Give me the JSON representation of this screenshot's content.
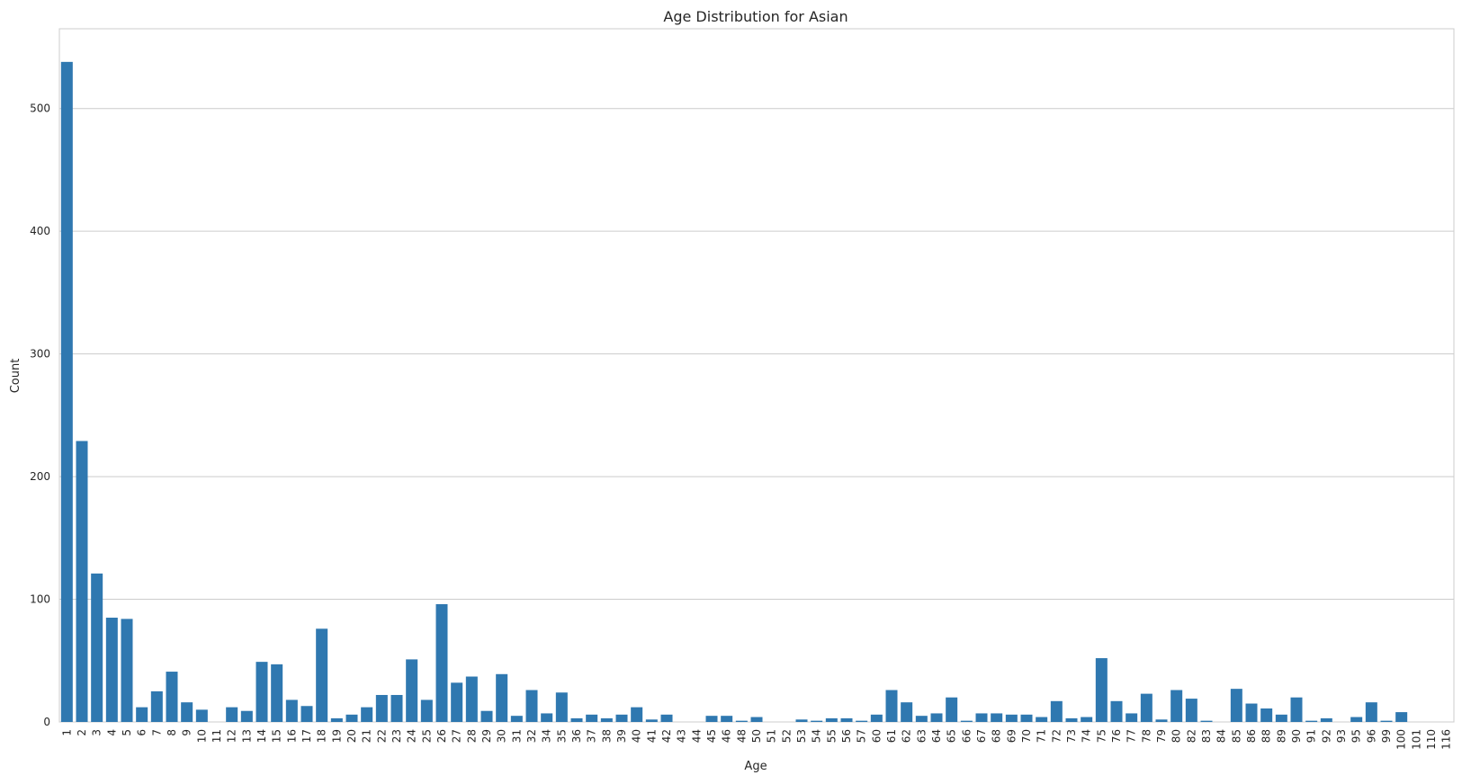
{
  "chart_data": {
    "type": "bar",
    "title": "Age Distribution for Asian",
    "xlabel": "Age",
    "ylabel": "Count",
    "ylim": [
      0,
      565
    ],
    "yticks": [
      0,
      100,
      200,
      300,
      400,
      500
    ],
    "grid": "horizontal",
    "bar_color": "#2f78b0",
    "categories": [
      "1",
      "2",
      "3",
      "4",
      "5",
      "6",
      "7",
      "8",
      "9",
      "10",
      "11",
      "12",
      "13",
      "14",
      "15",
      "16",
      "17",
      "18",
      "19",
      "20",
      "21",
      "22",
      "23",
      "24",
      "25",
      "26",
      "27",
      "28",
      "29",
      "30",
      "31",
      "32",
      "34",
      "35",
      "36",
      "37",
      "38",
      "39",
      "40",
      "41",
      "42",
      "43",
      "44",
      "45",
      "46",
      "48",
      "50",
      "51",
      "52",
      "53",
      "54",
      "55",
      "56",
      "57",
      "60",
      "61",
      "62",
      "63",
      "64",
      "65",
      "66",
      "67",
      "68",
      "69",
      "70",
      "71",
      "72",
      "73",
      "74",
      "75",
      "76",
      "77",
      "78",
      "79",
      "80",
      "82",
      "83",
      "84",
      "85",
      "86",
      "88",
      "89",
      "90",
      "91",
      "92",
      "93",
      "95",
      "96",
      "99",
      "100",
      "101",
      "110",
      "116"
    ],
    "values": [
      538,
      229,
      121,
      85,
      84,
      12,
      25,
      41,
      16,
      10,
      0,
      12,
      9,
      49,
      47,
      18,
      13,
      76,
      3,
      6,
      12,
      22,
      22,
      51,
      18,
      96,
      32,
      37,
      9,
      39,
      5,
      26,
      7,
      24,
      3,
      6,
      3,
      6,
      12,
      2,
      6,
      0,
      0,
      5,
      5,
      1,
      4,
      0,
      0,
      2,
      1,
      3,
      3,
      1,
      6,
      26,
      16,
      5,
      7,
      20,
      1,
      7,
      7,
      6,
      6,
      4,
      17,
      3,
      4,
      52,
      17,
      7,
      23,
      2,
      26,
      19,
      1,
      0,
      27,
      15,
      11,
      6,
      20,
      1,
      3,
      0,
      4,
      16,
      1,
      8,
      0,
      0,
      0
    ]
  }
}
